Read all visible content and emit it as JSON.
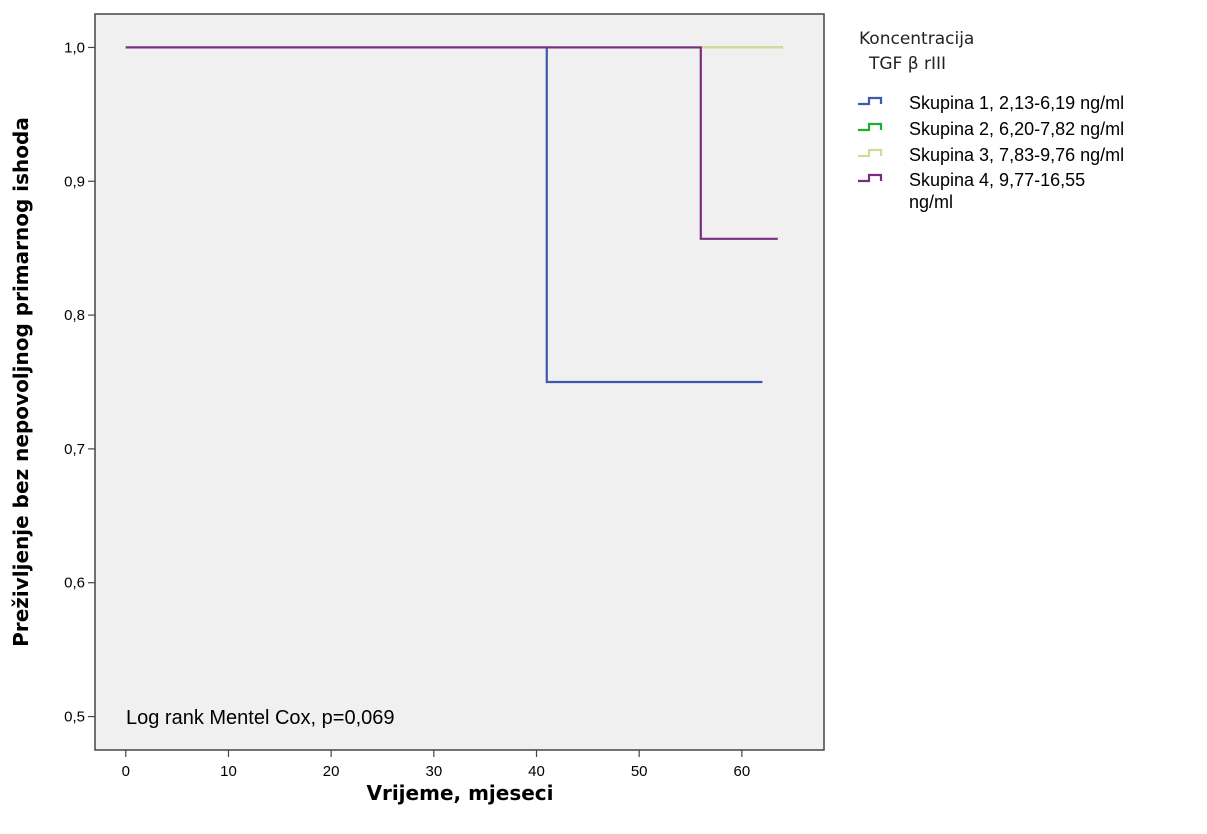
{
  "chart_data": {
    "type": "line",
    "step": true,
    "xlabel": "Vrijeme, mjeseci",
    "ylabel": "Preživljenje bez nepovoljnog primarnog ishoda",
    "xlim": [
      -3,
      68
    ],
    "ylim": [
      0.475,
      1.025
    ],
    "x_ticks": [
      0,
      10,
      20,
      30,
      40,
      50,
      60
    ],
    "x_tick_labels": [
      "0",
      "10",
      "20",
      "30",
      "40",
      "50",
      "60"
    ],
    "y_ticks": [
      0.5,
      0.6,
      0.7,
      0.8,
      0.9,
      1.0
    ],
    "y_tick_labels": [
      "0,5",
      "0,6",
      "0,7",
      "0,8",
      "0,9",
      "1,0"
    ],
    "grid": false,
    "legend_title": [
      "Koncentracija",
      "TGF β rIII"
    ],
    "legend_position": "right",
    "annotation": "Log rank Mentel Cox, p=0,069",
    "series": [
      {
        "name": "Skupina 1, 2,13-6,19 ng/ml",
        "color": "#3e58ac",
        "x": [
          0,
          41,
          41,
          62
        ],
        "y": [
          1.0,
          1.0,
          0.75,
          0.75
        ]
      },
      {
        "name": "Skupina 2, 6,20-7,82 ng/ml",
        "color": "#1fb12a",
        "x": [
          0,
          64
        ],
        "y": [
          1.0,
          1.0
        ]
      },
      {
        "name": "Skupina 3, 7,83-9,76 ng/ml",
        "color": "#d4d89a",
        "x": [
          0,
          64
        ],
        "y": [
          1.0,
          1.0
        ]
      },
      {
        "name": "Skupina 4, 9,77-16,55 ng/ml",
        "legend_lines": [
          "Skupina 4, 9,77-16,55",
          "ng/ml"
        ],
        "color": "#7c2b82",
        "x": [
          0,
          56,
          56,
          63.5
        ],
        "y": [
          1.0,
          1.0,
          0.857,
          0.857
        ]
      }
    ]
  }
}
